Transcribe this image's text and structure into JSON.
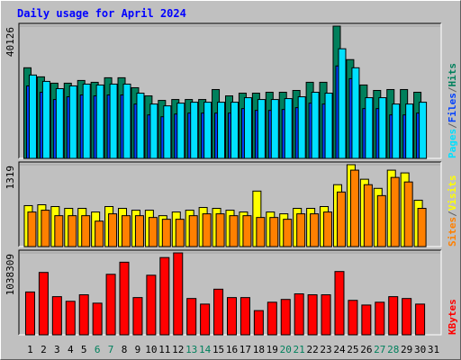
{
  "chart_data": [
    {
      "type": "bar",
      "title": "Daily usage for April 2024",
      "series": [
        {
          "name": "Hits",
          "color": "#00805c",
          "values": [
            27483,
            24734,
            22811,
            22811,
            23636,
            23085,
            24459,
            24459,
            21437,
            18963,
            17590,
            17864,
            17864,
            17864,
            20887,
            18963,
            19788,
            19788,
            20063,
            20063,
            20612,
            23085,
            23085,
            40126,
            29957,
            22262,
            20612,
            20887,
            20887,
            20063,
            null
          ]
        },
        {
          "name": "Files",
          "color": "#0040ff",
          "values": [
            21980,
            20060,
            17860,
            18690,
            19240,
            18960,
            19240,
            19240,
            16490,
            13190,
            12640,
            13460,
            13740,
            13740,
            13740,
            13740,
            15110,
            14560,
            14560,
            14840,
            15390,
            16760,
            16490,
            28040,
            24180,
            15110,
            15110,
            13190,
            13190,
            13740,
            null
          ]
        },
        {
          "name": "Pages",
          "color": "#00e0ff",
          "values": [
            25282,
            23358,
            21160,
            21984,
            22534,
            22259,
            22534,
            22534,
            19786,
            16488,
            15938,
            16763,
            17038,
            17038,
            17038,
            17038,
            18412,
            17862,
            17862,
            18137,
            18686,
            20060,
            19786,
            33251,
            27480,
            18412,
            18412,
            16488,
            16488,
            17038,
            null
          ]
        }
      ],
      "legend_separator": "/",
      "ylim": [
        0,
        40126
      ],
      "yticks": [
        40126
      ],
      "grid": true
    },
    {
      "type": "bar",
      "series": [
        {
          "name": "Visits",
          "color": "#ffff00",
          "values": [
            660,
            674,
            645,
            616,
            616,
            557,
            645,
            616,
            586,
            586,
            498,
            557,
            586,
            630,
            616,
            586,
            557,
            894,
            557,
            528,
            616,
            616,
            645,
            997,
            1319,
            1085,
            938,
            1231,
            1187,
            747,
            null
          ]
        },
        {
          "name": "Sites",
          "color": "#ff8000",
          "values": [
            557,
            586,
            498,
            498,
            498,
            410,
            528,
            498,
            498,
            469,
            440,
            440,
            498,
            528,
            528,
            498,
            498,
            469,
            469,
            440,
            528,
            528,
            557,
            879,
            1231,
            997,
            821,
            1114,
            1041,
            616,
            null
          ]
        }
      ],
      "legend_separator": "/",
      "ylim": [
        0,
        1319
      ],
      "yticks": [
        1319
      ],
      "grid": true
    },
    {
      "type": "bar",
      "series": [
        {
          "name": "KBytes",
          "color": "#ff0000",
          "values": [
            542754,
            790533,
            483759,
            424764,
            507357,
            401166,
            766935,
            920322,
            471960,
            755136,
            979317,
            1038309,
            460161,
            389367,
            578151,
            471960,
            471960,
            306774,
            412965,
            448362,
            519156,
            507357,
            507357,
            802332,
            436563,
            377568,
            412965,
            483759,
            460161,
            389367,
            null
          ]
        }
      ],
      "ylim": [
        0,
        1038309
      ],
      "yticks": [
        1038309
      ],
      "grid": true,
      "categories": [
        "1",
        "2",
        "3",
        "4",
        "5",
        "6",
        "7",
        "8",
        "9",
        "10",
        "11",
        "12",
        "13",
        "14",
        "15",
        "16",
        "17",
        "18",
        "19",
        "20",
        "21",
        "22",
        "23",
        "24",
        "25",
        "26",
        "27",
        "28",
        "29",
        "30",
        "31"
      ],
      "category_colors": [
        "#000000",
        "#000000",
        "#000000",
        "#000000",
        "#000000",
        "#00805c",
        "#00805c",
        "#000000",
        "#000000",
        "#000000",
        "#000000",
        "#000000",
        "#00805c",
        "#00805c",
        "#000000",
        "#000000",
        "#000000",
        "#000000",
        "#000000",
        "#00805c",
        "#00805c",
        "#000000",
        "#000000",
        "#000000",
        "#000000",
        "#000000",
        "#00805c",
        "#00805c",
        "#000000",
        "#000000",
        "#000000"
      ]
    }
  ]
}
